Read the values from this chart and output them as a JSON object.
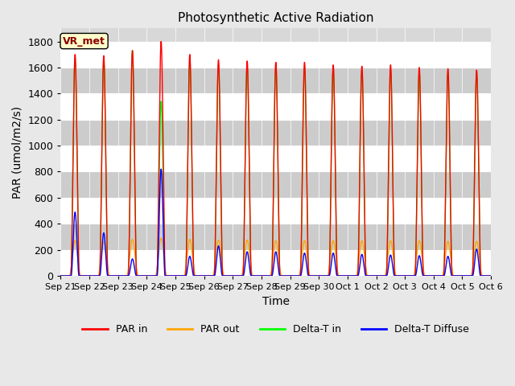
{
  "title": "Photosynthetic Active Radiation",
  "xlabel": "Time",
  "ylabel": "PAR (umol/m2/s)",
  "legend_labels": [
    "PAR in",
    "PAR out",
    "Delta-T in",
    "Delta-T Diffuse"
  ],
  "legend_colors": [
    "red",
    "orange",
    "lime",
    "blue"
  ],
  "vr_met_label": "VR_met",
  "ylim": [
    0,
    1900
  ],
  "yticks": [
    0,
    200,
    400,
    600,
    800,
    1000,
    1200,
    1400,
    1600,
    1800
  ],
  "x_tick_labels": [
    "Sep 21",
    "Sep 22",
    "Sep 23",
    "Sep 24",
    "Sep 25",
    "Sep 26",
    "Sep 27",
    "Sep 28",
    "Sep 29",
    "Sep 30",
    "Oct 1",
    "Oct 2",
    "Oct 3",
    "Oct 4",
    "Oct 5",
    "Oct 6"
  ],
  "num_days": 15,
  "background_color": "#e8e8e8",
  "plot_bg_color": "#d8d8d8",
  "par_in_peaks": [
    1700,
    1690,
    1730,
    1800,
    1700,
    1660,
    1650,
    1640,
    1640,
    1620,
    1610,
    1620,
    1600,
    1590,
    1580
  ],
  "par_out_peaks": [
    270,
    260,
    280,
    290,
    280,
    275,
    275,
    270,
    270,
    270,
    270,
    270,
    270,
    265,
    265
  ],
  "delta_t_in_peaks": [
    1680,
    1660,
    1730,
    1340,
    1640,
    1620,
    1610,
    1610,
    1600,
    1590,
    1580,
    1580,
    1570,
    1560,
    1560
  ],
  "delta_t_diffuse_peaks": [
    490,
    330,
    130,
    820,
    150,
    230,
    185,
    185,
    175,
    175,
    165,
    160,
    155,
    150,
    205
  ]
}
